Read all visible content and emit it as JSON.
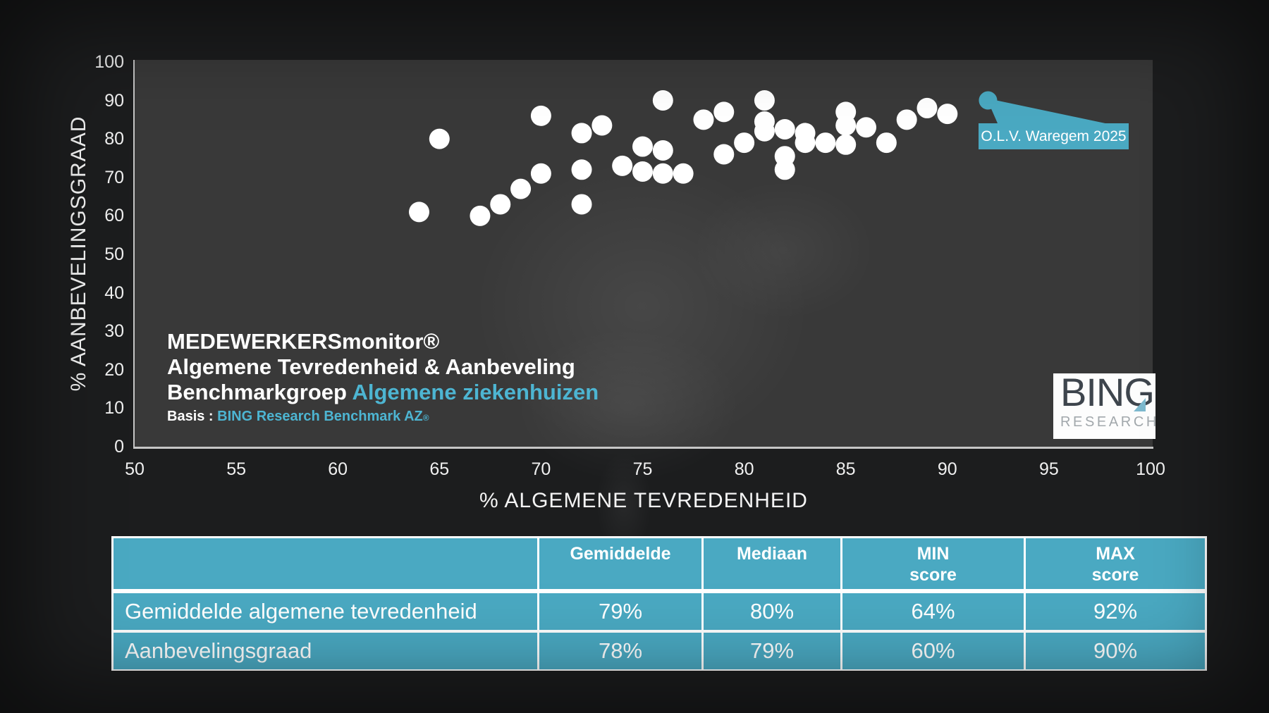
{
  "colors": {
    "accent_fill": "#4aa9c2",
    "accent_text": "#4db5d2",
    "point_color": "#ffffff",
    "plot_bg": "#393939",
    "page_bg": "#1c1d1e",
    "axis_color": "#c6c6c6",
    "tick_text": "#f0f0f0"
  },
  "chart_data": {
    "type": "scatter",
    "xlabel": "% ALGEMENE TEVREDENHEID",
    "ylabel": "% AANBEVELINGSGRAAD",
    "xlim": [
      50,
      100
    ],
    "ylim": [
      0,
      100
    ],
    "x_ticks": [
      50,
      55,
      60,
      65,
      70,
      75,
      80,
      85,
      90,
      95,
      100
    ],
    "y_ticks": [
      0,
      10,
      20,
      30,
      40,
      50,
      60,
      70,
      80,
      90,
      100
    ],
    "grid": false,
    "legend_position": "none",
    "series": [
      {
        "name": "Benchmark algemene ziekenhuizen",
        "color": "#ffffff",
        "points": [
          [
            64,
            61
          ],
          [
            65,
            80
          ],
          [
            67,
            60
          ],
          [
            68,
            63
          ],
          [
            69,
            67
          ],
          [
            70,
            71
          ],
          [
            70,
            86
          ],
          [
            72,
            63
          ],
          [
            72,
            72
          ],
          [
            72,
            81.5
          ],
          [
            73,
            83.5
          ],
          [
            74,
            73
          ],
          [
            75,
            71.5
          ],
          [
            75,
            78
          ],
          [
            76,
            71
          ],
          [
            76,
            77
          ],
          [
            76,
            90
          ],
          [
            77,
            71
          ],
          [
            78,
            85
          ],
          [
            79,
            87
          ],
          [
            79,
            76
          ],
          [
            80,
            79
          ],
          [
            81,
            90
          ],
          [
            81,
            84.5
          ],
          [
            81,
            82
          ],
          [
            82,
            82.5
          ],
          [
            82,
            75.5
          ],
          [
            82,
            72
          ],
          [
            83,
            81.5
          ],
          [
            83,
            79
          ],
          [
            84,
            79
          ],
          [
            85,
            87
          ],
          [
            85,
            83.5
          ],
          [
            85,
            78.5
          ],
          [
            86,
            83
          ],
          [
            87,
            79
          ],
          [
            88,
            85
          ],
          [
            89,
            88
          ],
          [
            90,
            86.5
          ]
        ]
      },
      {
        "name": "O.L.V. Waregem 2025",
        "color": "#4aa9c2",
        "points": [
          [
            92,
            90
          ]
        ]
      }
    ],
    "annotation": {
      "label": "O.L.V. Waregem 2025",
      "x": 92,
      "y": 90
    }
  },
  "title_block": {
    "line1": "MEDEWERKERSmonitor®",
    "line2": "Algemene Tevredenheid & Aanbeveling",
    "line3_prefix": "Benchmarkgroep ",
    "line3_accent": "Algemene ziekenhuizen",
    "line4_prefix": "Basis : ",
    "line4_accent": "BING Research Benchmark AZ",
    "line4_suffix": "®"
  },
  "callout": {
    "label": "O.L.V. Waregem 2025"
  },
  "logo": {
    "main": "BING",
    "sub": "RESEARCH"
  },
  "table": {
    "headers": [
      {
        "line1": "",
        "line2": ""
      },
      {
        "line1": "Gemiddelde",
        "line2": ""
      },
      {
        "line1": "Mediaan",
        "line2": ""
      },
      {
        "line1": "MIN",
        "line2": "score"
      },
      {
        "line1": "MAX",
        "line2": "score"
      }
    ],
    "rows": [
      {
        "label": "Gemiddelde algemene tevredenheid",
        "values": [
          "79%",
          "80%",
          "64%",
          "92%"
        ]
      },
      {
        "label": "Aanbevelingsgraad",
        "values": [
          "78%",
          "79%",
          "60%",
          "90%"
        ]
      }
    ]
  }
}
